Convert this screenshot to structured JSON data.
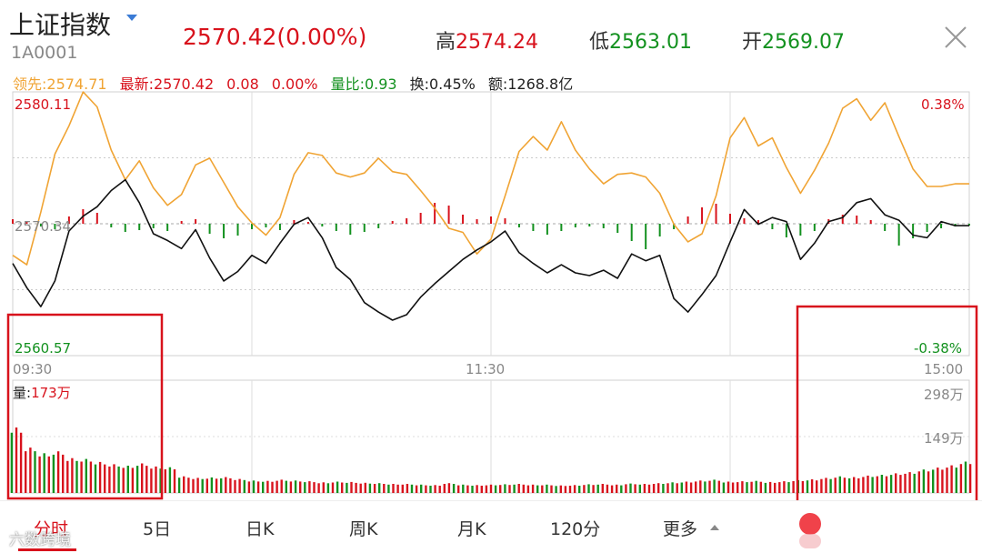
{
  "header": {
    "name": "上证指数",
    "code": "1A0001",
    "price": "2570.42",
    "change_pct": "(0.00%)",
    "high_label": "高",
    "high": "2574.24",
    "low_label": "低",
    "low": "2563.01",
    "open_label": "开",
    "open": "2569.07"
  },
  "info": {
    "lead": "领先:2574.71",
    "latest": "最新:2570.42",
    "change": "0.08",
    "change_pct": "0.00%",
    "vol_ratio": "量比:0.93",
    "turnover": "换:0.45%",
    "amount": "额:1268.8亿"
  },
  "axis": {
    "y_max": "2580.11",
    "y_mid": "2570.34",
    "y_min": "2560.57",
    "pct_max": "0.38%",
    "pct_min": "-0.38%",
    "time_start": "09:30",
    "time_mid": "11:30",
    "time_end": "15:00",
    "vol_label_prefix": "量:",
    "vol_label_value": "173万",
    "vol_max": "298万",
    "vol_mid": "149万"
  },
  "tabs": [
    "分时",
    "5日",
    "日K",
    "周K",
    "月K",
    "120分",
    "更多"
  ],
  "watermark": "六数跨境",
  "colors": {
    "up": "#d8121c",
    "down": "#13911f",
    "lead_line": "#f0a434",
    "price_line": "#111111",
    "highlight_box": "#d8121c"
  },
  "chart_data": {
    "type": "line",
    "title": "",
    "ylim": [
      2560.57,
      2580.11
    ],
    "price_samples": [
      2567.4,
      2565.6,
      2564.2,
      2566.1,
      2569.8,
      2570.9,
      2571.6,
      2572.8,
      2573.6,
      2571.9,
      2569.6,
      2569.1,
      2568.5,
      2569.9,
      2567.8,
      2566.1,
      2566.8,
      2568.0,
      2567.4,
      2568.9,
      2570.3,
      2570.8,
      2569.3,
      2567.1,
      2566.2,
      2564.5,
      2563.8,
      2563.2,
      2563.6,
      2564.9,
      2565.9,
      2566.8,
      2567.7,
      2568.4,
      2569.0,
      2569.8,
      2568.2,
      2567.4,
      2566.7,
      2567.3,
      2566.7,
      2566.5,
      2566.9,
      2566.3,
      2568.1,
      2567.6,
      2568.0,
      2564.8,
      2563.8,
      2565.1,
      2566.5,
      2569.0,
      2571.4,
      2570.3,
      2570.8,
      2570.5,
      2567.7,
      2568.9,
      2570.5,
      2570.8,
      2571.9,
      2572.2,
      2571.0,
      2570.6,
      2569.5,
      2569.3,
      2570.5,
      2570.2,
      2570.2
    ],
    "lead_samples": [
      2568.0,
      2567.3,
      2571.2,
      2575.5,
      2577.6,
      2580.1,
      2579.0,
      2575.8,
      2573.6,
      2575.0,
      2573.0,
      2571.7,
      2572.5,
      2574.7,
      2575.2,
      2573.4,
      2571.6,
      2570.4,
      2569.5,
      2570.8,
      2574.0,
      2575.6,
      2575.4,
      2574.1,
      2573.8,
      2574.1,
      2575.2,
      2574.2,
      2574.0,
      2572.8,
      2571.5,
      2570.0,
      2569.7,
      2568.1,
      2569.2,
      2572.4,
      2575.7,
      2576.8,
      2575.8,
      2577.9,
      2575.8,
      2574.4,
      2573.3,
      2574.0,
      2574.1,
      2573.8,
      2572.6,
      2570.3,
      2569.0,
      2569.6,
      2572.4,
      2576.7,
      2578.2,
      2576.1,
      2576.7,
      2574.5,
      2572.6,
      2574.3,
      2576.3,
      2578.9,
      2579.6,
      2578.0,
      2579.3,
      2576.8,
      2574.4,
      2573.1,
      2573.1,
      2573.3,
      2573.3
    ],
    "pressure_bars": [
      0.5,
      0.2,
      -0.3,
      -0.6,
      0.8,
      1.6,
      1.2,
      -0.4,
      -0.9,
      -0.7,
      -0.5,
      -0.8,
      0.3,
      0.5,
      -1.1,
      -1.6,
      -1.3,
      -0.6,
      -0.4,
      -0.7,
      0.4,
      0.2,
      -0.3,
      -0.8,
      -1.2,
      -0.9,
      -0.5,
      0.3,
      0.6,
      1.2,
      2.3,
      2.0,
      1.0,
      0.5,
      0.8,
      0.6,
      -0.4,
      -0.8,
      -1.2,
      -0.8,
      -0.4,
      -0.3,
      -0.5,
      -1.0,
      -1.9,
      -2.8,
      -1.4,
      -0.6,
      0.8,
      1.8,
      2.2,
      1.1,
      0.6,
      0.4,
      -0.6,
      -1.5,
      -1.3,
      -0.8,
      0.5,
      1.0,
      0.9,
      0.4,
      -0.8,
      -2.4,
      -1.6,
      -0.9,
      -0.5,
      -0.3,
      -0.2
    ],
    "volume_samples": [
      173,
      120,
      105,
      110,
      92,
      90,
      82,
      76,
      72,
      78,
      70,
      68,
      44,
      40,
      41,
      42,
      37,
      33,
      32,
      35,
      33,
      31,
      28,
      30,
      29,
      27,
      26,
      24,
      24,
      22,
      21,
      26,
      22,
      21,
      22,
      23,
      24,
      22,
      22,
      20,
      21,
      23,
      24,
      22,
      25,
      24,
      26,
      28,
      30,
      33,
      35,
      30,
      31,
      32,
      29,
      31,
      34,
      36,
      40,
      44,
      42,
      46,
      48,
      52,
      55,
      62,
      67,
      73,
      83
    ]
  }
}
